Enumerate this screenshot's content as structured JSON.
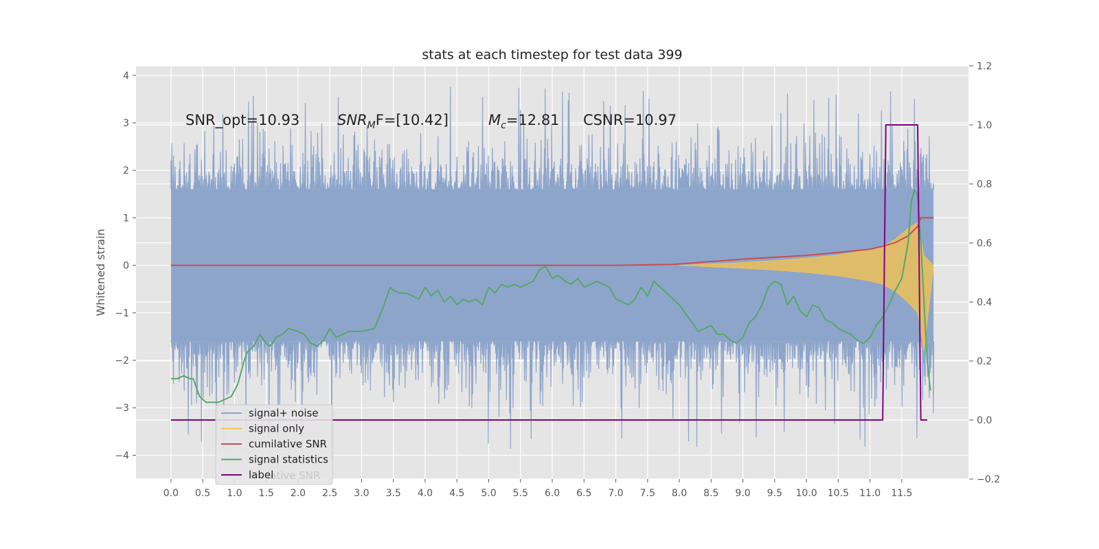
{
  "chart_data": {
    "type": "line",
    "title": "stats at each timestep for test data 399",
    "ylabel": "Whitened strain",
    "xlim": [
      -0.55,
      12.55
    ],
    "ylim": [
      -4.5,
      4.2
    ],
    "y2lim": [
      -0.2,
      1.2
    ],
    "xticks": [
      "0.0",
      "0.5",
      "1.0",
      "1.5",
      "2.0",
      "2.5",
      "3.0",
      "3.5",
      "4.0",
      "4.5",
      "5.0",
      "5.5",
      "6.0",
      "6.5",
      "7.0",
      "7.5",
      "8.0",
      "8.5",
      "9.0",
      "9.5",
      "10.0",
      "10.5",
      "11.0",
      "11.5"
    ],
    "yticks": [
      "−4",
      "−3",
      "−2",
      "−1",
      "0",
      "1",
      "2",
      "3",
      "4"
    ],
    "y2ticks": [
      "−0.2",
      "0.0",
      "0.2",
      "0.4",
      "0.6",
      "0.8",
      "1.0",
      "1.2"
    ],
    "grid": true,
    "legend_position": "lower-left",
    "annotations": {
      "snr_opt_label": "SNR_opt=10.93",
      "snr_mf_main": "SNR",
      "snr_mf_sub": "M",
      "snr_mf_rest": "F=[10.42]",
      "mc_main": "M",
      "mc_sub": "c",
      "mc_rest": "=12.81",
      "csnr_label": "CSNR=10.97"
    },
    "legend": {
      "items": [
        {
          "label": "signal+ noise",
          "color": "#8ea5cb"
        },
        {
          "label": "signal only",
          "color": "#f5c34e"
        },
        {
          "label": "cumilative SNR",
          "color": "#c44e52"
        },
        {
          "label": "signal statistics",
          "color": "#55a868"
        },
        {
          "label": "label",
          "color": "#800080"
        }
      ],
      "ghost_text": "lative SNR"
    },
    "series": [
      {
        "name": "signal+ noise",
        "color": "#8ea5cb",
        "axis": "left",
        "style": "noise",
        "x_range": [
          0.0,
          12.0
        ],
        "typical_range": [
          -1.6,
          1.6
        ],
        "extreme_range": [
          -4.1,
          3.8
        ]
      },
      {
        "name": "signal only",
        "color": "#f5c34e",
        "axis": "left",
        "style": "envelope",
        "x": [
          8.0,
          8.5,
          9.0,
          9.5,
          10.0,
          10.5,
          11.0,
          11.2,
          11.4,
          11.6,
          11.75,
          11.85,
          12.0
        ],
        "upper": [
          0.0,
          0.03,
          0.06,
          0.1,
          0.15,
          0.22,
          0.33,
          0.4,
          0.55,
          0.78,
          0.9,
          0.2,
          0.0
        ],
        "lower": [
          0.0,
          -0.03,
          -0.06,
          -0.1,
          -0.15,
          -0.22,
          -0.33,
          -0.4,
          -0.55,
          -0.78,
          -1.0,
          -1.8,
          0.0
        ]
      },
      {
        "name": "cumilative SNR",
        "color": "#c44e52",
        "axis": "left",
        "x": [
          0.0,
          5.0,
          7.0,
          7.9,
          8.5,
          9.0,
          9.5,
          10.0,
          10.5,
          11.0,
          11.2,
          11.4,
          11.6,
          11.75,
          11.8,
          12.0
        ],
        "y": [
          0.0,
          0.0,
          0.0,
          0.02,
          0.08,
          0.13,
          0.17,
          0.21,
          0.27,
          0.34,
          0.4,
          0.48,
          0.62,
          0.82,
          1.0,
          1.0
        ]
      },
      {
        "name": "signal statistics",
        "color": "#55a868",
        "axis": "right",
        "x": [
          0.0,
          0.1,
          0.2,
          0.3,
          0.35,
          0.45,
          0.55,
          0.65,
          0.75,
          0.85,
          0.95,
          1.0,
          1.05,
          1.1,
          1.15,
          1.2,
          1.25,
          1.3,
          1.4,
          1.5,
          1.55,
          1.6,
          1.65,
          1.75,
          1.85,
          2.0,
          2.1,
          2.2,
          2.3,
          2.4,
          2.5,
          2.6,
          2.8,
          3.0,
          3.2,
          3.3,
          3.4,
          3.45,
          3.5,
          3.6,
          3.7,
          3.8,
          3.9,
          4.0,
          4.1,
          4.2,
          4.3,
          4.4,
          4.5,
          4.6,
          4.7,
          4.8,
          4.9,
          5.0,
          5.1,
          5.2,
          5.3,
          5.4,
          5.5,
          5.6,
          5.7,
          5.8,
          5.9,
          6.0,
          6.1,
          6.2,
          6.3,
          6.4,
          6.5,
          6.6,
          6.7,
          6.8,
          6.9,
          7.0,
          7.1,
          7.2,
          7.3,
          7.4,
          7.5,
          7.6,
          7.7,
          7.8,
          7.9,
          8.0,
          8.1,
          8.2,
          8.3,
          8.4,
          8.5,
          8.6,
          8.7,
          8.8,
          8.9,
          9.0,
          9.1,
          9.2,
          9.3,
          9.4,
          9.5,
          9.6,
          9.7,
          9.8,
          9.9,
          10.0,
          10.1,
          10.2,
          10.3,
          10.4,
          10.5,
          10.6,
          10.7,
          10.8,
          10.9,
          11.0,
          11.1,
          11.2,
          11.3,
          11.4,
          11.5,
          11.6,
          11.65,
          11.7,
          11.75,
          11.8,
          11.85,
          11.9,
          11.95
        ],
        "y": [
          0.14,
          0.14,
          0.15,
          0.14,
          0.14,
          0.08,
          0.06,
          0.06,
          0.06,
          0.07,
          0.08,
          0.1,
          0.12,
          0.16,
          0.2,
          0.23,
          0.24,
          0.25,
          0.29,
          0.26,
          0.25,
          0.26,
          0.28,
          0.29,
          0.31,
          0.3,
          0.29,
          0.26,
          0.25,
          0.27,
          0.31,
          0.28,
          0.3,
          0.3,
          0.31,
          0.36,
          0.42,
          0.45,
          0.44,
          0.43,
          0.43,
          0.42,
          0.41,
          0.45,
          0.42,
          0.44,
          0.4,
          0.42,
          0.39,
          0.41,
          0.4,
          0.41,
          0.39,
          0.45,
          0.43,
          0.46,
          0.45,
          0.46,
          0.45,
          0.46,
          0.47,
          0.51,
          0.52,
          0.48,
          0.49,
          0.47,
          0.46,
          0.48,
          0.45,
          0.46,
          0.47,
          0.46,
          0.45,
          0.41,
          0.4,
          0.39,
          0.41,
          0.45,
          0.42,
          0.47,
          0.45,
          0.43,
          0.41,
          0.39,
          0.36,
          0.33,
          0.3,
          0.31,
          0.32,
          0.29,
          0.29,
          0.27,
          0.26,
          0.28,
          0.33,
          0.35,
          0.39,
          0.45,
          0.47,
          0.46,
          0.39,
          0.42,
          0.37,
          0.35,
          0.39,
          0.38,
          0.34,
          0.33,
          0.31,
          0.3,
          0.29,
          0.27,
          0.26,
          0.28,
          0.32,
          0.35,
          0.39,
          0.44,
          0.48,
          0.6,
          0.74,
          0.78,
          0.76,
          0.6,
          0.4,
          0.2,
          0.1
        ],
        "points": []
      },
      {
        "name": "label",
        "color": "#800080",
        "axis": "right",
        "x": [
          0.0,
          11.2,
          11.25,
          11.75,
          11.8,
          11.9
        ],
        "y": [
          0.0,
          0.0,
          1.0,
          1.0,
          0.0,
          0.0
        ]
      }
    ]
  }
}
